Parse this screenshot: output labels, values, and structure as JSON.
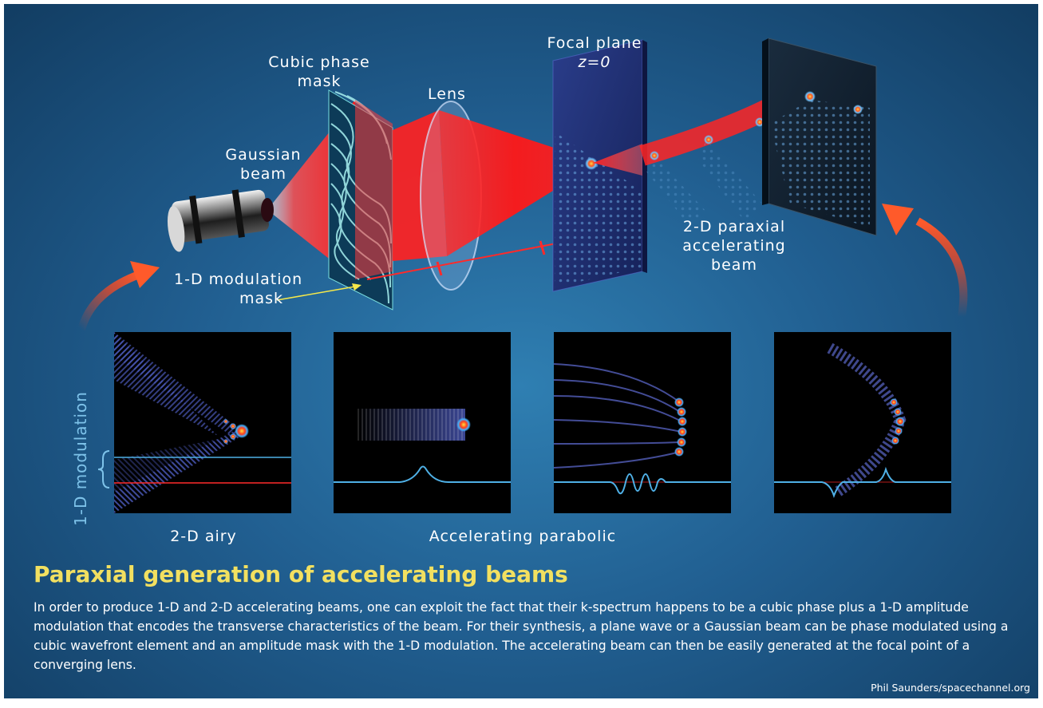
{
  "labels": {
    "cubic_phase_mask": [
      "Cubic phase",
      "mask"
    ],
    "lens": "Lens",
    "focal_plane": [
      "Focal plane",
      "z=0"
    ],
    "gaussian_beam": [
      "Gaussian",
      "beam"
    ],
    "modulation_mask": [
      "1-D modulation",
      "mask"
    ],
    "paraxial_beam": [
      "2-D paraxial",
      "accelerating",
      "beam"
    ],
    "modulation_axis": "1-D modulation",
    "airy_caption": "2-D airy",
    "parabolic_caption": "Accelerating parabolic"
  },
  "title": "Paraxial generation of accelerating beams",
  "description": "In order to produce 1-D and 2-D accelerating beams, one can exploit the fact that their k-spectrum happens to be a cubic phase plus a 1-D amplitude modulation that encodes the transverse characteristics of the beam. For their synthesis, a plane wave or a Gaussian beam can be phase modulated using a cubic wavefront element and an amplitude mask with the 1-D modulation. The accelerating beam can then be easily generated at the focal point of a converging lens.",
  "credit": "Phil Saunders/spacechannel.org",
  "colors": {
    "background": "#1f5c8c",
    "title": "#f2e060",
    "beam": "#ff2020",
    "profile_line": "#4fb0e6",
    "reference_line": "#ff2a2a",
    "axis_label": "#7ec3ea",
    "arrow": "#e84a2a"
  }
}
